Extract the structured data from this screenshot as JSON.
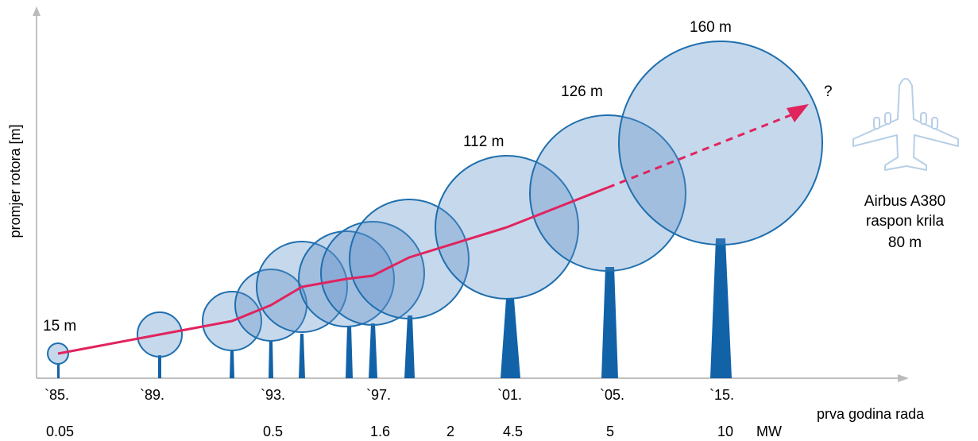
{
  "diagram": {
    "y_axis_label": "promjer rotora [m]",
    "x_axis_label": "prva godina rada",
    "power_unit": "MW",
    "years": [
      "`85.",
      "`89.",
      "`93.",
      "`97.",
      "`01.",
      "`05.",
      "`15."
    ],
    "powers": [
      "0.05",
      "0.5",
      "1.6",
      "2",
      "4.5",
      "5",
      "10"
    ],
    "diameters": [
      "15 m",
      "112 m",
      "126 m",
      "160 m"
    ],
    "future_marker": "?",
    "reference": {
      "icon": "airplane-icon",
      "line1": "Airbus A380",
      "line2": "raspon krila",
      "line3": "80 m"
    },
    "colors": {
      "rotor_fill": "#5b8fc9",
      "rotor_stroke": "#1f6fae",
      "tower": "#1262a8",
      "trend_line": "#e0245e"
    }
  }
}
